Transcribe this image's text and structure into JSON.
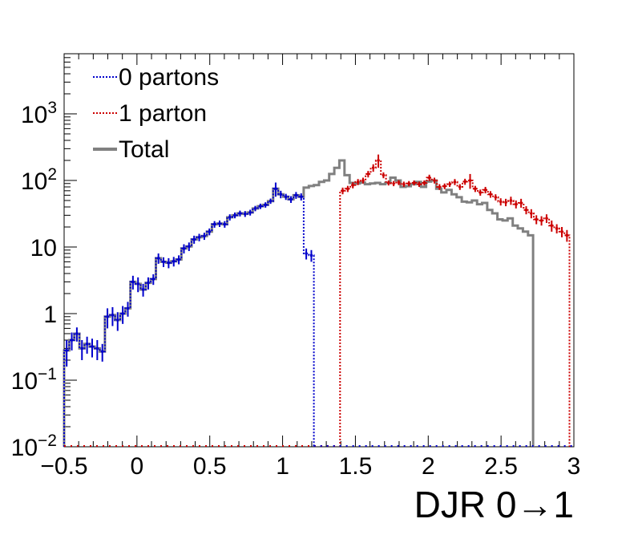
{
  "chart_data": {
    "type": "line",
    "title": "",
    "xlabel": "DJR 0→1",
    "ylabel": "",
    "xlim": [
      -0.5,
      3.0
    ],
    "ylim": [
      0.01,
      8000
    ],
    "yscale": "log",
    "grid": false,
    "legend_position": "top-left",
    "x_tick_labels": [
      "−0.5",
      "0",
      "0.5",
      "1",
      "1.5",
      "2",
      "2.5",
      "3"
    ],
    "x_tick_values": [
      -0.5,
      0,
      0.5,
      1,
      1.5,
      2,
      2.5,
      3
    ],
    "y_tick_labels": [
      {
        "value": 0.01,
        "base": "10",
        "exp": "−2"
      },
      {
        "value": 0.1,
        "base": "10",
        "exp": "−1"
      },
      {
        "value": 1,
        "base": "1",
        "exp": ""
      },
      {
        "value": 10,
        "base": "10",
        "exp": ""
      },
      {
        "value": 100,
        "base": "10",
        "exp": "2"
      },
      {
        "value": 1000,
        "base": "10",
        "exp": "3"
      }
    ],
    "bin_width": 0.035,
    "series": [
      {
        "name": "0 partons",
        "color": "#0000cc",
        "style": "dotted",
        "start": -0.5,
        "values": [
          0.28,
          0.4,
          0.5,
          0.3,
          0.35,
          0.32,
          0.3,
          0.27,
          0.9,
          0.95,
          0.8,
          1.0,
          1.2,
          3.0,
          2.8,
          2.3,
          2.9,
          3.3,
          6.8,
          6.0,
          5.8,
          6.1,
          6.5,
          9.5,
          10.2,
          13.0,
          14.0,
          14.6,
          17.0,
          22.0,
          22.5,
          22.0,
          28.0,
          30.0,
          32.0,
          31.5,
          33.0,
          38.0,
          41.0,
          43.0,
          49.0,
          75.0,
          62.0,
          57.0,
          52.0,
          60.0,
          57.0,
          8.0,
          7.5
        ],
        "errors": [
          0.12,
          0.12,
          0.12,
          0.1,
          0.1,
          0.1,
          0.1,
          0.08,
          0.3,
          0.3,
          0.25,
          0.3,
          0.3,
          0.7,
          0.7,
          0.5,
          0.6,
          0.6,
          1.2,
          1.0,
          1.0,
          1.0,
          1.0,
          1.5,
          1.5,
          1.8,
          1.8,
          1.8,
          2.0,
          2.5,
          2.5,
          2.5,
          3.0,
          3.0,
          3.2,
          3.2,
          3.3,
          3.5,
          3.8,
          4.0,
          4.5,
          18.0,
          8.0,
          6.0,
          6.0,
          7.0,
          7.0,
          1.5,
          1.5
        ]
      },
      {
        "name": "1 parton",
        "color": "#cc0000",
        "style": "dotted",
        "start": 1.395,
        "values": [
          70,
          75,
          85,
          95,
          100,
          125,
          155,
          200,
          120,
          92,
          90,
          93,
          88,
          90,
          92,
          88,
          92,
          110,
          100,
          80,
          82,
          88,
          95,
          80,
          96,
          100,
          75,
          66,
          72,
          62,
          56,
          48,
          47,
          50,
          44,
          46,
          36,
          32,
          26,
          25,
          27,
          21,
          19,
          17,
          15
        ],
        "errors": [
          8,
          8,
          9,
          10,
          10,
          14,
          20,
          45,
          12,
          8,
          8,
          8,
          8,
          8,
          8,
          8,
          8,
          12,
          10,
          8,
          8,
          8,
          10,
          8,
          10,
          25,
          8,
          7,
          8,
          7,
          6,
          6,
          6,
          7,
          6,
          7,
          5,
          5,
          4,
          4,
          4,
          4,
          3,
          3,
          3
        ]
      },
      {
        "name": "Total",
        "color": "#808080",
        "style": "solid",
        "start": -0.5,
        "values": [
          0.28,
          0.4,
          0.5,
          0.3,
          0.35,
          0.32,
          0.3,
          0.27,
          0.9,
          0.95,
          0.8,
          1.0,
          1.2,
          3.0,
          2.8,
          2.3,
          2.9,
          3.3,
          6.8,
          6.0,
          5.8,
          6.1,
          6.5,
          9.5,
          10.2,
          13.0,
          14.0,
          14.6,
          17.0,
          22.0,
          22.5,
          22.0,
          28.0,
          30.0,
          32.0,
          31.5,
          33.0,
          38.0,
          41.0,
          43.0,
          49.0,
          75.0,
          62.0,
          57.0,
          52.0,
          60.0,
          57.0,
          78.0,
          82.5,
          85,
          95,
          100,
          125,
          155,
          200,
          120,
          92,
          90,
          93,
          88,
          90,
          92,
          88,
          92,
          110,
          100,
          80,
          82,
          88,
          95,
          80,
          96,
          100,
          75,
          66,
          72,
          62,
          56,
          48,
          47,
          50,
          44,
          46,
          36,
          32,
          26,
          25,
          27,
          21,
          19,
          17,
          15
        ]
      }
    ]
  }
}
